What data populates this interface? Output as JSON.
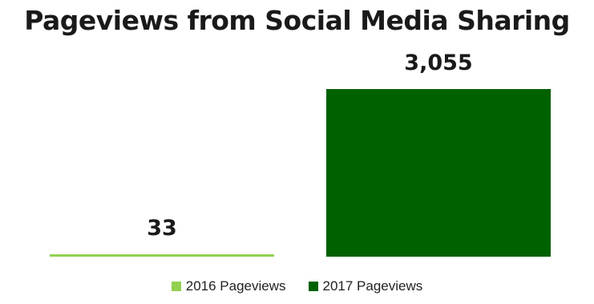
{
  "chart_data": {
    "type": "bar",
    "title": "Pageviews from Social Media Sharing",
    "categories": [
      "2016 Pageviews",
      "2017 Pageviews"
    ],
    "values": [
      33,
      3055
    ],
    "value_labels": [
      "33",
      "3,055"
    ],
    "colors": [
      "#92d050",
      "#006100"
    ],
    "ylim": [
      0,
      3055
    ],
    "grid": false,
    "legend": "bottom",
    "legend_entries": [
      {
        "label": "2016 Pageviews",
        "color": "#92d050"
      },
      {
        "label": "2017 Pageviews",
        "color": "#006100"
      }
    ]
  }
}
